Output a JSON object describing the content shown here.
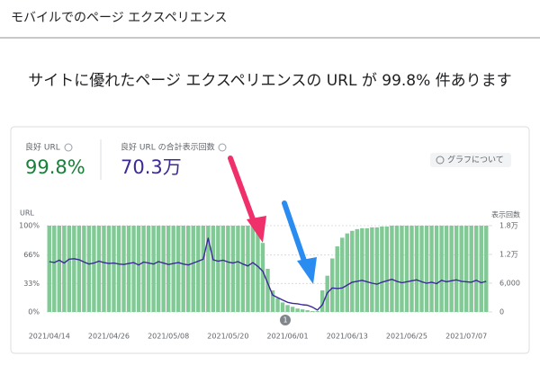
{
  "header": {
    "title": "モバイルでのページ エクスペリエンス"
  },
  "headline": "サイトに優れたページ エクスペリエンスの URL が 99.8% 件あります",
  "metrics": [
    {
      "label": "良好 URL",
      "value": "99.8%"
    },
    {
      "label": "良好 URL の合計表示回数",
      "value": "70.3万"
    }
  ],
  "chip": "グラフについて",
  "chart_data": {
    "type": "bar_line",
    "y_label": "URL",
    "y2_label": "表示回数",
    "annotation": "1",
    "categories": [
      "2021/04/14",
      null,
      null,
      null,
      null,
      null,
      null,
      null,
      null,
      null,
      null,
      null,
      "2021/04/26",
      null,
      null,
      null,
      null,
      null,
      null,
      null,
      null,
      null,
      null,
      null,
      "2021/05/08",
      null,
      null,
      null,
      null,
      null,
      null,
      null,
      null,
      null,
      null,
      null,
      "2021/05/20",
      null,
      null,
      null,
      null,
      null,
      null,
      null,
      null,
      null,
      null,
      null,
      "2021/06/01",
      null,
      null,
      null,
      null,
      null,
      null,
      null,
      null,
      null,
      null,
      null,
      "2021/06/13",
      null,
      null,
      null,
      null,
      null,
      null,
      null,
      null,
      null,
      null,
      null,
      "2021/06/25",
      null,
      null,
      null,
      null,
      null,
      null,
      null,
      null,
      null,
      null,
      null,
      "2021/07/07",
      null,
      null,
      null,
      null
    ],
    "series": [
      {
        "color": "#81c995",
        "values": [
          100,
          100,
          100,
          100,
          100,
          100,
          100,
          100,
          100,
          100,
          100,
          100,
          100,
          100,
          100,
          100,
          100,
          100,
          100,
          100,
          100,
          100,
          100,
          100,
          100,
          100,
          100,
          100,
          100,
          100,
          100,
          100,
          100,
          100,
          100,
          100,
          100,
          100,
          100,
          100,
          100,
          100,
          100,
          80,
          50,
          25,
          16,
          11,
          8,
          6,
          4,
          3,
          2,
          1,
          1,
          25,
          42,
          62,
          76,
          86,
          91,
          94,
          96,
          97,
          97,
          98,
          98,
          99,
          99,
          100,
          100,
          100,
          100,
          100,
          100,
          100,
          100,
          100,
          100,
          100,
          100,
          100,
          100,
          100,
          100,
          100,
          100,
          100,
          100
        ]
      },
      {
        "color": "#3c2a98",
        "axis": "y2",
        "values": [
          10500,
          10300,
          10800,
          10200,
          11000,
          11100,
          10900,
          10400,
          10000,
          10200,
          10600,
          10300,
          10100,
          10200,
          10000,
          9900,
          10100,
          10300,
          9800,
          10400,
          10200,
          10000,
          10500,
          10200,
          9900,
          10100,
          10300,
          10000,
          9800,
          10200,
          10600,
          11000,
          15400,
          10900,
          10600,
          10800,
          10400,
          10200,
          10500,
          10000,
          9600,
          10300,
          9500,
          8500,
          6000,
          3500,
          3000,
          2500,
          2000,
          1800,
          1700,
          1500,
          1400,
          1000,
          400,
          1500,
          4000,
          5000,
          4900,
          5000,
          5600,
          6200,
          6400,
          6600,
          6300,
          6000,
          5800,
          6200,
          6500,
          6800,
          6400,
          6100,
          6300,
          6500,
          6700,
          6300,
          6000,
          6200,
          5900,
          6600,
          6300,
          6500,
          6700,
          6400,
          6300,
          6200,
          6600,
          6100,
          6400
        ]
      }
    ],
    "ylim": [
      0,
      100
    ],
    "yticks": [
      {
        "value": 0,
        "label": "0%"
      },
      {
        "value": 33,
        "label": "33%"
      },
      {
        "value": 66,
        "label": "66%"
      },
      {
        "value": 100,
        "label": "100%"
      }
    ],
    "y2lim": [
      0,
      18000
    ],
    "y2ticks": [
      0,
      {
        "value": 6000,
        "label": "6,000"
      },
      {
        "value": 12000,
        "label": "1.2万"
      },
      {
        "value": 18000,
        "label": "1.8万"
      }
    ],
    "grid": true
  }
}
